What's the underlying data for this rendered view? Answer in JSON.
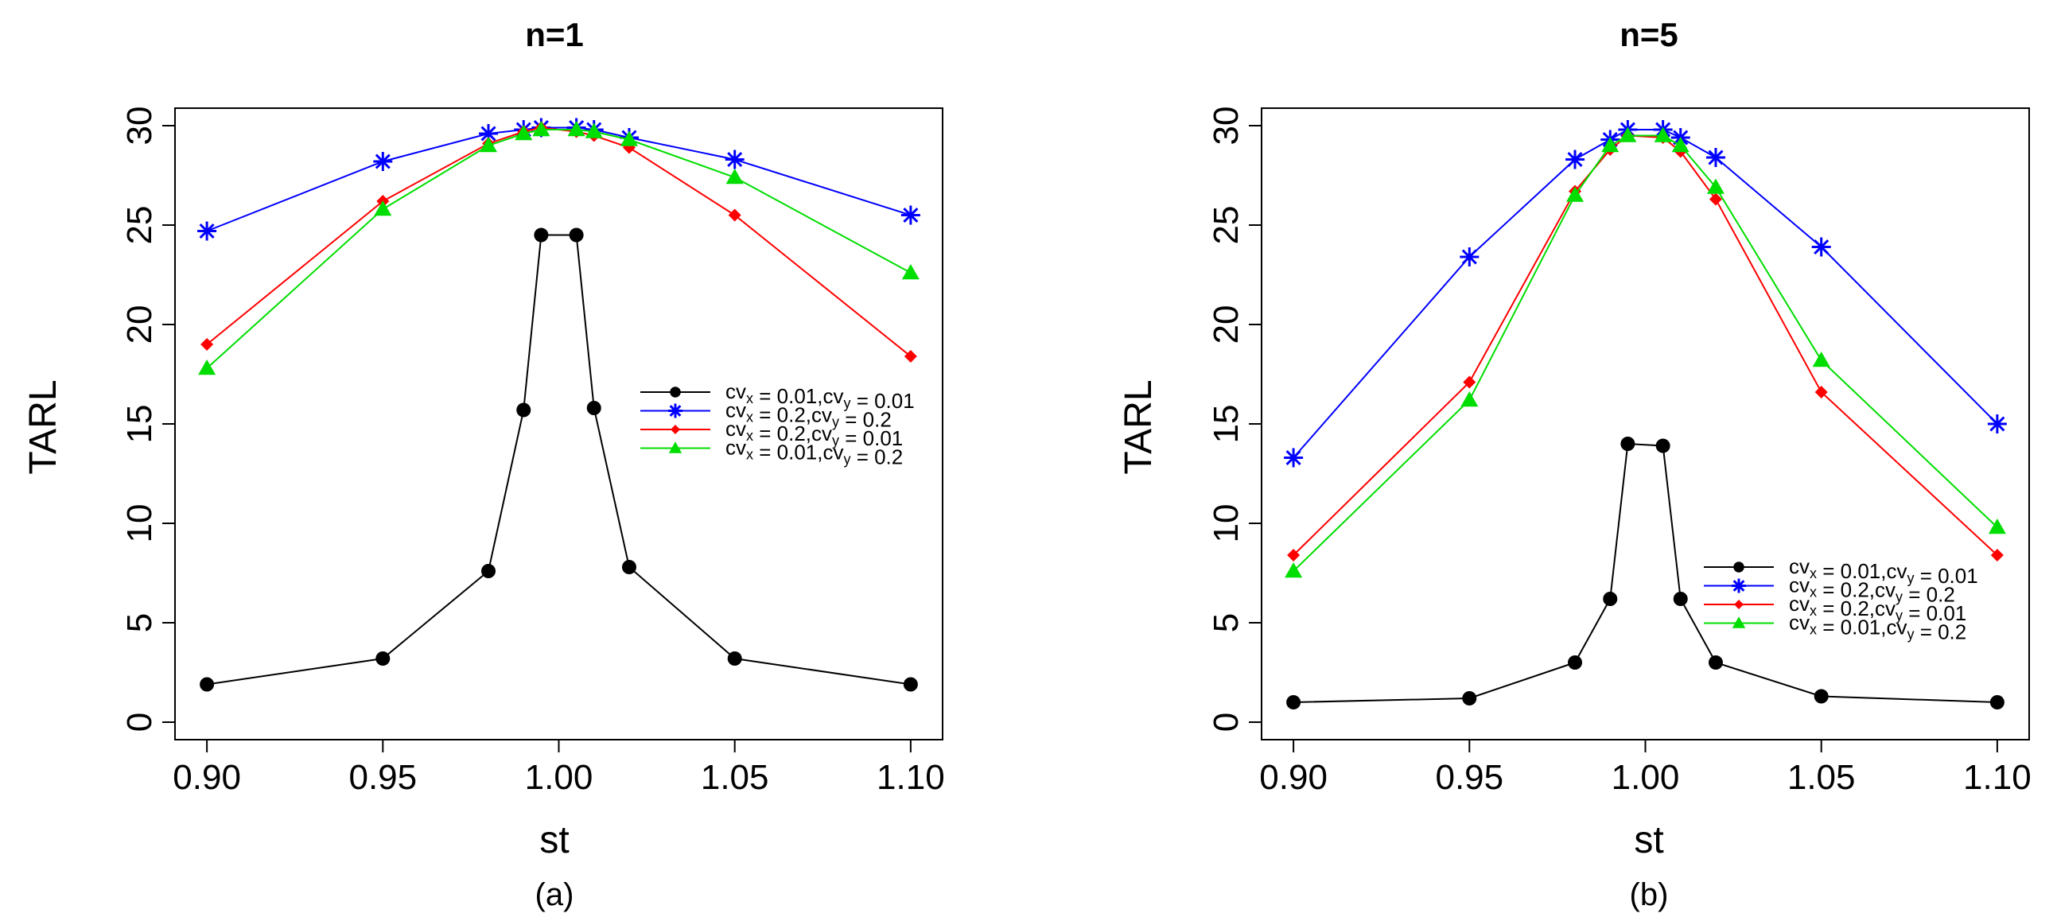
{
  "series_names": [
    {
      "name": "cv_x = 0.01,cv_y = 0.01",
      "color": "#000000",
      "marker": "circle"
    },
    {
      "name": "cv_x = 0.2,cv_y = 0.2",
      "color": "#0000ff",
      "marker": "star"
    },
    {
      "name": "cv_x = 0.2,cv_y = 0.01",
      "color": "#ff0000",
      "marker": "diamond"
    },
    {
      "name": "cv_x = 0.01,cv_y = 0.2",
      "color": "#00dd00",
      "marker": "triangle"
    }
  ],
  "legend_parts": [
    {
      "a": "cv",
      "sa": "x",
      "b": " = 0.01,cv",
      "sb": "y",
      "c": " = 0.01"
    },
    {
      "a": "cv",
      "sa": "x",
      "b": " = 0.2,cv",
      "sb": "y",
      "c": " = 0.2"
    },
    {
      "a": "cv",
      "sa": "x",
      "b": " = 0.2,cv",
      "sb": "y",
      "c": " = 0.01"
    },
    {
      "a": "cv",
      "sa": "x",
      "b": " = 0.01,cv",
      "sb": "y",
      "c": " = 0.2"
    }
  ],
  "chart_data": [
    {
      "type": "line",
      "title": "n=1",
      "xlabel": "st",
      "ylabel": "TARL",
      "caption": "(a)",
      "x": [
        0.9,
        0.95,
        0.98,
        0.99,
        0.995,
        1.005,
        1.01,
        1.02,
        1.05,
        1.1
      ],
      "xticks": [
        0.9,
        0.95,
        1.0,
        1.05,
        1.1
      ],
      "xtick_labels": [
        "0.90",
        "0.95",
        "1.00",
        "1.05",
        "1.10"
      ],
      "yticks": [
        0,
        5,
        10,
        15,
        20,
        25,
        30
      ],
      "ytick_labels": [
        "0",
        "5",
        "10",
        "15",
        "20",
        "25",
        "30"
      ],
      "xlim": [
        0.895,
        1.105
      ],
      "ylim": [
        0,
        30
      ],
      "legend_position": "center-right",
      "series": [
        {
          "name": "cv_x = 0.01,cv_y = 0.01",
          "values": [
            1.9,
            3.2,
            7.6,
            15.7,
            24.5,
            24.5,
            15.8,
            7.8,
            3.2,
            1.9
          ]
        },
        {
          "name": "cv_x = 0.2,cv_y = 0.2",
          "values": [
            24.7,
            28.2,
            29.6,
            29.8,
            29.9,
            29.9,
            29.8,
            29.4,
            28.3,
            25.5
          ]
        },
        {
          "name": "cv_x = 0.2,cv_y = 0.01",
          "values": [
            19.0,
            26.2,
            29.1,
            29.7,
            29.9,
            29.7,
            29.5,
            28.9,
            25.5,
            18.4
          ]
        },
        {
          "name": "cv_x = 0.01,cv_y = 0.2",
          "values": [
            17.8,
            25.8,
            29.0,
            29.6,
            29.8,
            29.8,
            29.7,
            29.3,
            27.4,
            22.6
          ]
        }
      ]
    },
    {
      "type": "line",
      "title": "n=5",
      "xlabel": "st",
      "ylabel": "TARL",
      "caption": "(b)",
      "x": [
        0.9,
        0.95,
        0.98,
        0.99,
        0.995,
        1.005,
        1.01,
        1.02,
        1.05,
        1.1
      ],
      "xticks": [
        0.9,
        0.95,
        1.0,
        1.05,
        1.1
      ],
      "xtick_labels": [
        "0.90",
        "0.95",
        "1.00",
        "1.05",
        "1.10"
      ],
      "yticks": [
        0,
        5,
        10,
        15,
        20,
        25,
        30
      ],
      "ytick_labels": [
        "0",
        "5",
        "10",
        "15",
        "20",
        "25",
        "30"
      ],
      "xlim": [
        0.895,
        1.105
      ],
      "ylim": [
        0,
        30
      ],
      "legend_position": "bottom-right",
      "series": [
        {
          "name": "cv_x = 0.01,cv_y = 0.01",
          "values": [
            1.0,
            1.2,
            3.0,
            6.2,
            14.0,
            13.9,
            6.2,
            3.0,
            1.3,
            1.0
          ]
        },
        {
          "name": "cv_x = 0.2,cv_y = 0.2",
          "values": [
            13.3,
            23.4,
            28.3,
            29.3,
            29.8,
            29.8,
            29.4,
            28.4,
            23.9,
            15.0
          ]
        },
        {
          "name": "cv_x = 0.2,cv_y = 0.01",
          "values": [
            8.4,
            17.1,
            26.7,
            28.8,
            29.5,
            29.4,
            28.7,
            26.3,
            16.6,
            8.4
          ]
        },
        {
          "name": "cv_x = 0.01,cv_y = 0.2",
          "values": [
            7.6,
            16.2,
            26.5,
            29.0,
            29.5,
            29.5,
            29.0,
            26.9,
            18.2,
            9.8
          ]
        }
      ]
    }
  ]
}
